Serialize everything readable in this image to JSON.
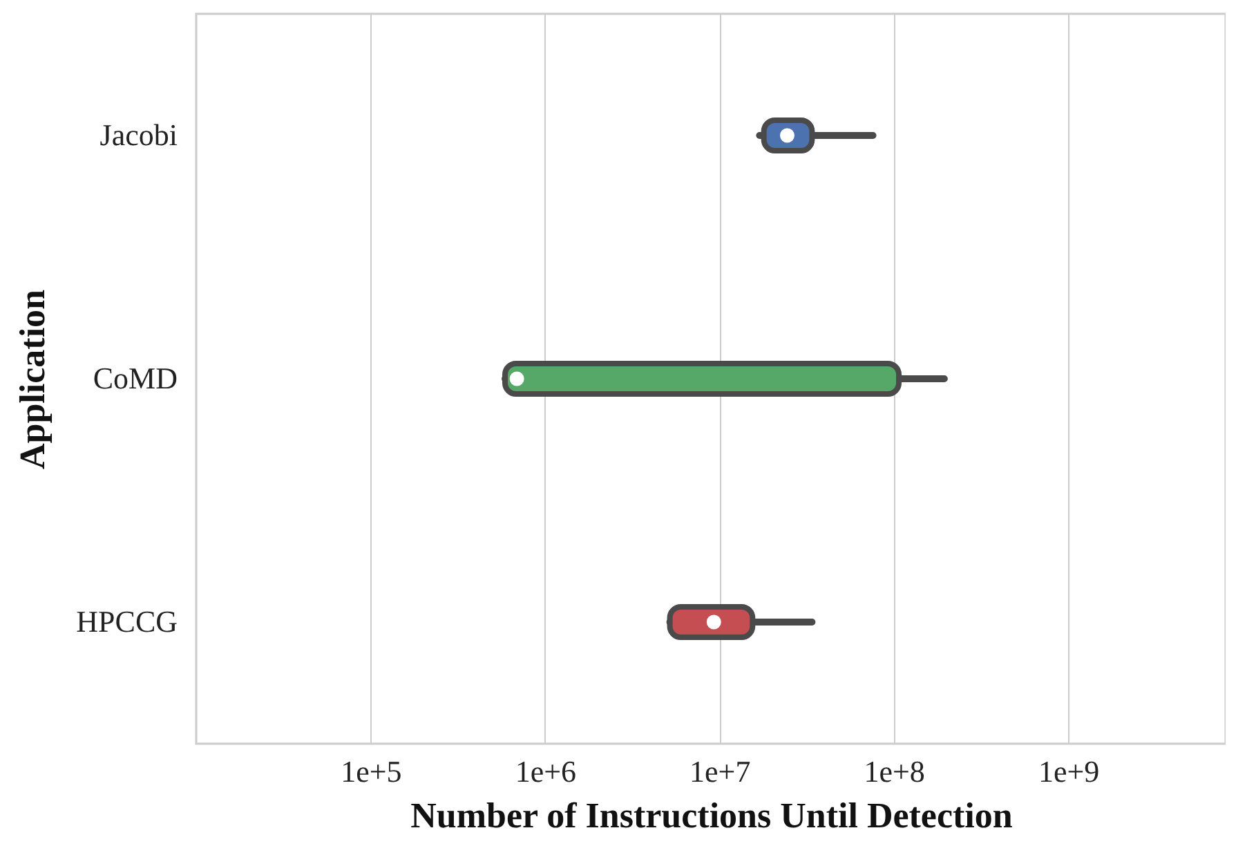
{
  "chart_data": {
    "type": "box",
    "xlabel": "Number of Instructions Until Detection",
    "ylabel": "Application",
    "orientation": "horizontal",
    "log": "x",
    "categories": [
      "Jacobi",
      "CoMD",
      "HPCCG"
    ],
    "colors": [
      "#4c72b0",
      "#55a868",
      "#c44e52"
    ],
    "boxes": [
      {
        "low": 17000000,
        "q1": 18000000,
        "median": 24500000,
        "q3": 34000000,
        "high": 76000000
      },
      {
        "low": 590000,
        "q1": 590000,
        "median": 690000,
        "q3": 107000000,
        "high": 195000000
      },
      {
        "low": 5200000,
        "q1": 5200000,
        "median": 9300000,
        "q3": 15500000,
        "high": 34000000
      }
    ],
    "xlim": [
      10000,
      8000000000
    ],
    "xticks": [
      {
        "value": 100000,
        "label": "1e+5"
      },
      {
        "value": 1000000,
        "label": "1e+6"
      },
      {
        "value": 10000000,
        "label": "1e+7"
      },
      {
        "value": 100000000,
        "label": "1e+8"
      },
      {
        "value": 1000000000,
        "label": "1e+9"
      }
    ],
    "grid": "x"
  }
}
